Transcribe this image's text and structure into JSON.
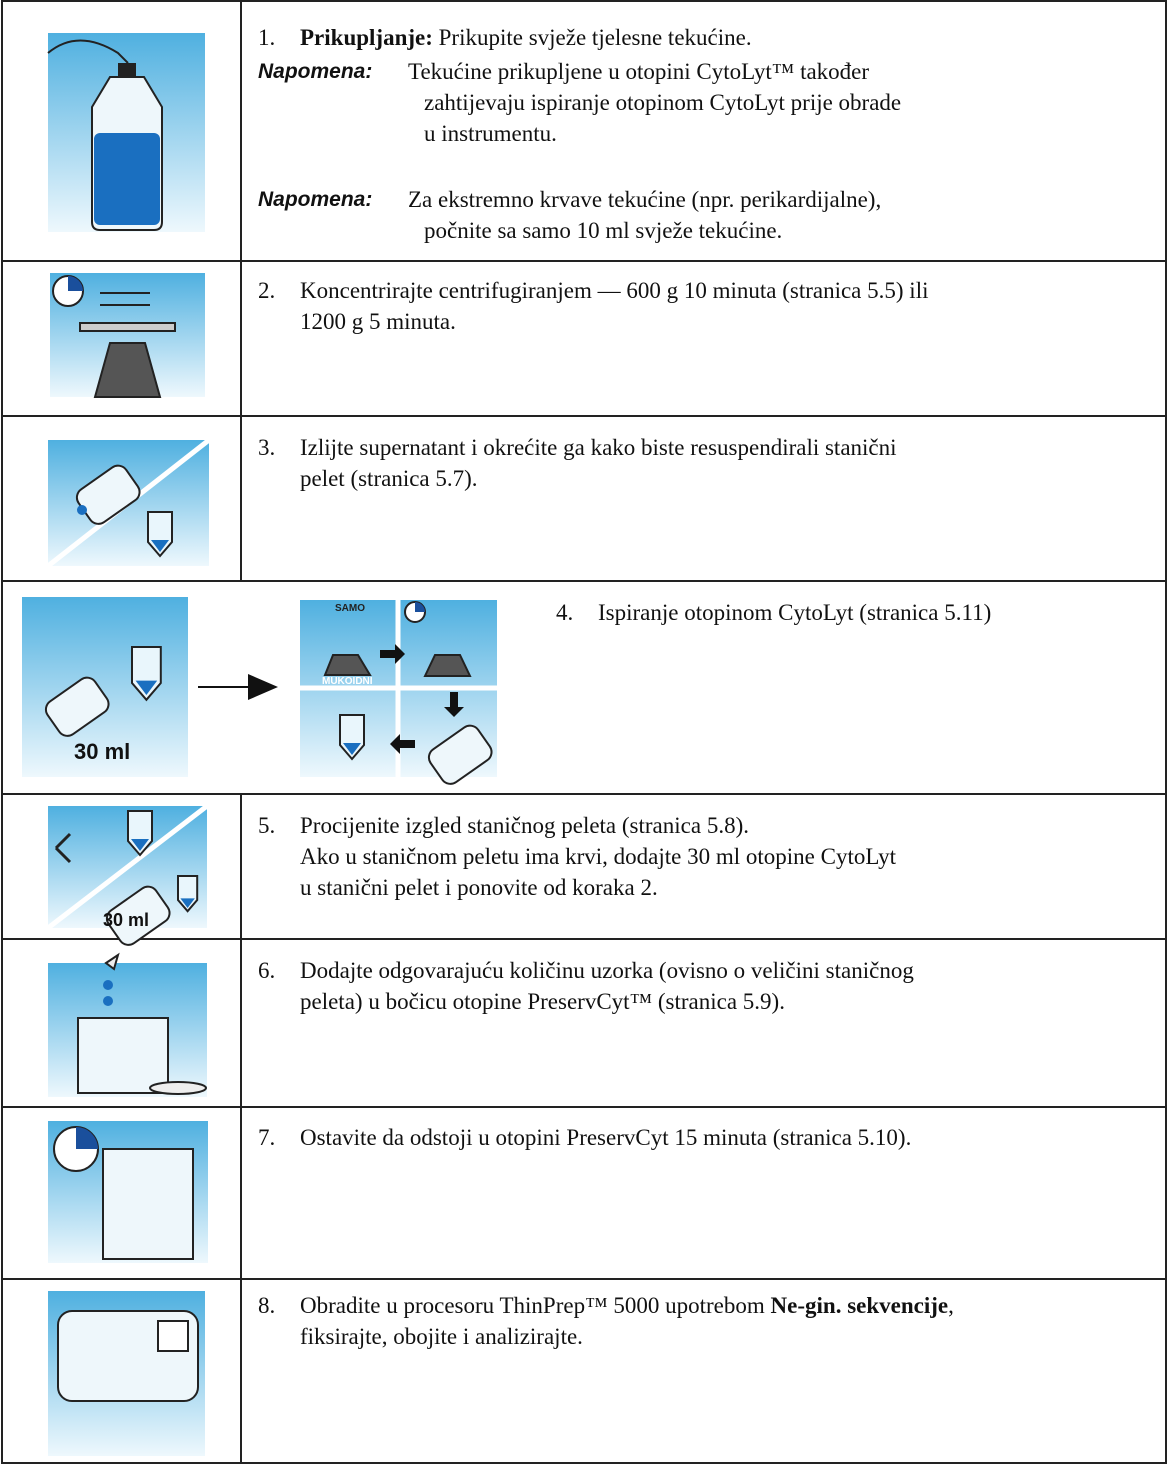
{
  "steps": [
    {
      "number": "1.",
      "lines": [
        [
          {
            "text": "Prikupljanje:",
            "bold": true
          },
          {
            "text": " Prikupite svježe tjelesne tekućine."
          }
        ]
      ],
      "notes": [
        {
          "label": "Napomena:",
          "lines": [
            "Tekućine prikupljene u otopini CytoLyt™ također",
            "zahtijevaju ispiranje otopinom CytoLyt prije obrade",
            "u instrumentu."
          ]
        },
        {
          "label": "Napomena:",
          "lines": [
            "Za ekstremno krvave tekućine (npr. perikardijalne),",
            "počnite sa samo 10 ml svježe tekućine."
          ]
        }
      ]
    },
    {
      "number": "2.",
      "lines": [
        [
          {
            "text": "Koncentrirajte centrifugiranjem — 600 g 10 minuta (stranica 5.5) ili"
          }
        ],
        [
          {
            "text": "1200 g 5 minuta."
          }
        ]
      ]
    },
    {
      "number": "3.",
      "lines": [
        [
          {
            "text": "Izlijte supernatant i okrećite ga kako biste resuspendirali stanični"
          }
        ],
        [
          {
            "text": "pelet (stranica 5.7)."
          }
        ]
      ]
    },
    {
      "number": "4.",
      "lines": [
        [
          {
            "text": "Ispiranje otopinom CytoLyt (stranica 5.11)"
          }
        ]
      ],
      "icon_labels": [
        "30 ml",
        "SAMO",
        "MUKOIDNI"
      ]
    },
    {
      "number": "5.",
      "lines": [
        [
          {
            "text": "Procijenite izgled staničnog peleta (stranica 5.8)."
          }
        ],
        [
          {
            "text": "Ako u staničnom peletu ima krvi, dodajte 30 ml otopine CytoLyt"
          }
        ],
        [
          {
            "text": "u stanični pelet i ponovite od koraka 2."
          }
        ]
      ],
      "icon_labels": [
        "30 ml"
      ]
    },
    {
      "number": "6.",
      "lines": [
        [
          {
            "text": "Dodajte odgovarajuću količinu uzorka (ovisno o veličini staničnog"
          }
        ],
        [
          {
            "text": "peleta) u bočicu otopine PreservCyt™ (stranica 5.9)."
          }
        ]
      ]
    },
    {
      "number": "7.",
      "lines": [
        [
          {
            "text": "Ostavite da odstoji u otopini PreservCyt 15 minuta (stranica 5.10)."
          }
        ]
      ]
    },
    {
      "number": "8.",
      "lines": [
        [
          {
            "text": "Obradite u procesoru ThinPrep™ 5000 upotrebom "
          },
          {
            "text": "Ne-gin. sekvencije",
            "bold": true
          },
          {
            "text": ","
          }
        ],
        [
          {
            "text": "fiksirajte, obojite i analizirajte."
          }
        ]
      ]
    }
  ]
}
